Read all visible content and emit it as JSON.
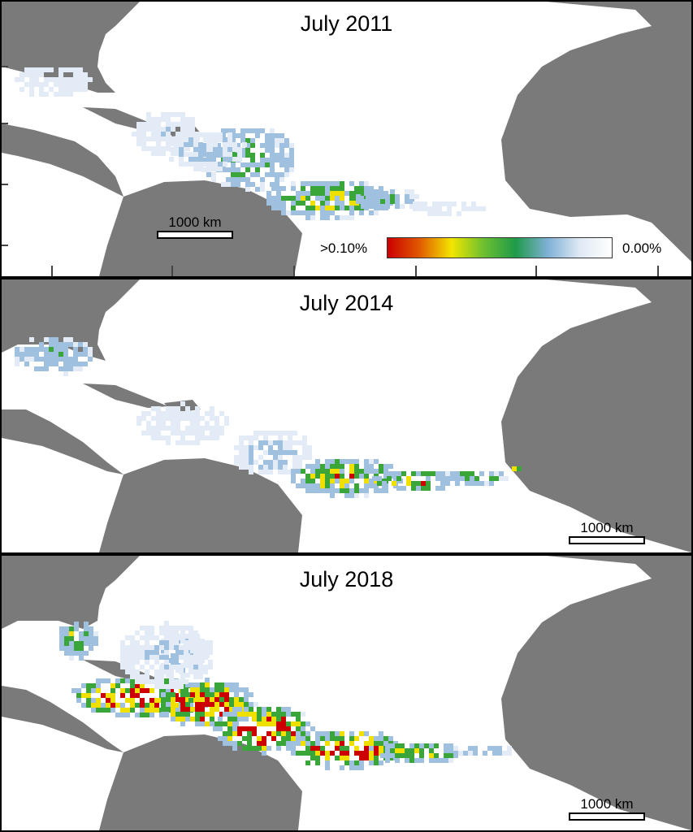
{
  "panels": [
    {
      "title": "July 2011"
    },
    {
      "title": "July 2014"
    },
    {
      "title": "July 2018"
    }
  ],
  "scale_label": "1000 km",
  "legend": {
    "high_label": ">0.10%",
    "low_label": "0.00%",
    "gradient": [
      "#cc0000",
      "#e05a00",
      "#f2e600",
      "#6cbf2f",
      "#1f9a4a",
      "#7fb0d6",
      "#dfe9f4",
      "#ffffff"
    ]
  },
  "colors": {
    "land": "#7a7a7a",
    "ocean": "#ffffff",
    "high": "#cc0000",
    "mid_high": "#f0e000",
    "mid": "#3aa63a",
    "low": "#9fc0df",
    "trace": "#e3ecf6"
  }
}
